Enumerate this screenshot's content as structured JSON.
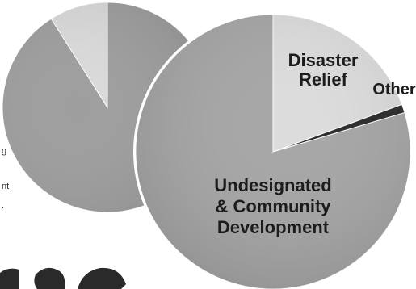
{
  "chart_data": [
    {
      "type": "pie",
      "title": "",
      "slices": [
        {
          "name": "",
          "value": 91,
          "color": "#9e9e9e"
        },
        {
          "name": "",
          "value": 9,
          "color": "#dadada"
        }
      ]
    },
    {
      "type": "pie",
      "title": "",
      "slices": [
        {
          "name": "Disaster Relief",
          "label_lines": [
            "Disaster",
            "Relief"
          ],
          "value": 19.4,
          "color": "#dcdcdc"
        },
        {
          "name": "Other",
          "label_lines": [
            "Other"
          ],
          "value": 1.0,
          "color": "#2a2a2a"
        },
        {
          "name": "Undesignated & Community Development",
          "label_lines": [
            "Undesignated",
            "& Community",
            "Development"
          ],
          "value": 79.6,
          "color": "#a6a6a6"
        }
      ]
    }
  ],
  "left_text_fragments": [
    "g",
    "nt",
    "."
  ]
}
